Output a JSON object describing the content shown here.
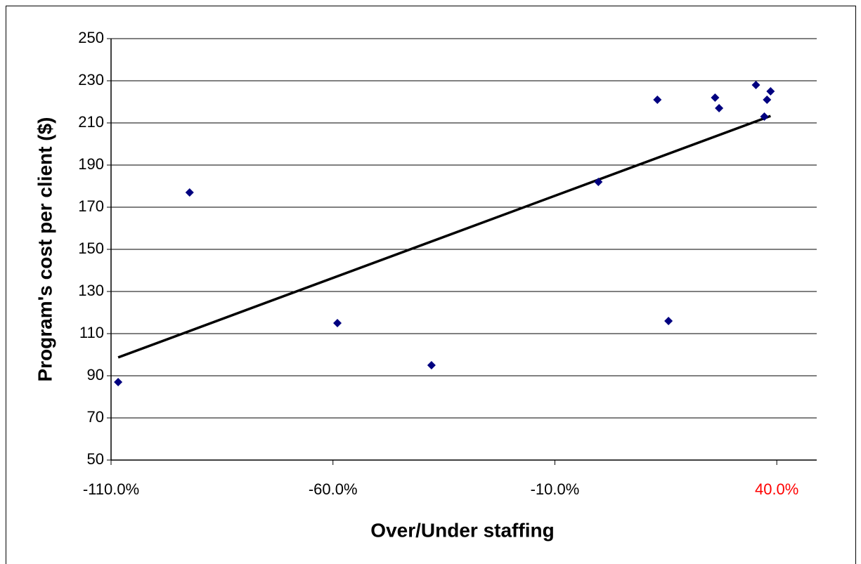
{
  "chart_data": {
    "type": "scatter",
    "x_label": "Over/Under staffing",
    "y_label": "Program's cost per client ($)",
    "x": [
      -108.4,
      -92.3,
      -59.0,
      -37.8,
      -0.2,
      13.1,
      15.6,
      26.1,
      27.0,
      35.3,
      37.2,
      37.8,
      38.6
    ],
    "values": [
      87,
      177,
      115,
      95,
      182,
      221,
      116,
      222,
      217,
      228,
      213,
      221,
      225
    ],
    "color": "#000080",
    "trendline": {
      "x": [
        -108.4,
        38.6
      ],
      "values": [
        98.7,
        213.3
      ],
      "color": "#000000"
    },
    "xlim": [
      -110,
      49
    ],
    "ylim": [
      50,
      250
    ],
    "xticks": [
      {
        "value": -110,
        "label": "-110.0%"
      },
      {
        "value": -60,
        "label": "-60.0%"
      },
      {
        "value": -10,
        "label": "-10.0%"
      },
      {
        "value": 40,
        "label": "40.0%"
      }
    ],
    "xtick_colors": [
      "#000000",
      "#000000",
      "#000000",
      "#ff0000"
    ],
    "yticks": [
      50,
      70,
      90,
      110,
      130,
      150,
      170,
      190,
      210,
      230,
      250
    ],
    "grid": true
  }
}
